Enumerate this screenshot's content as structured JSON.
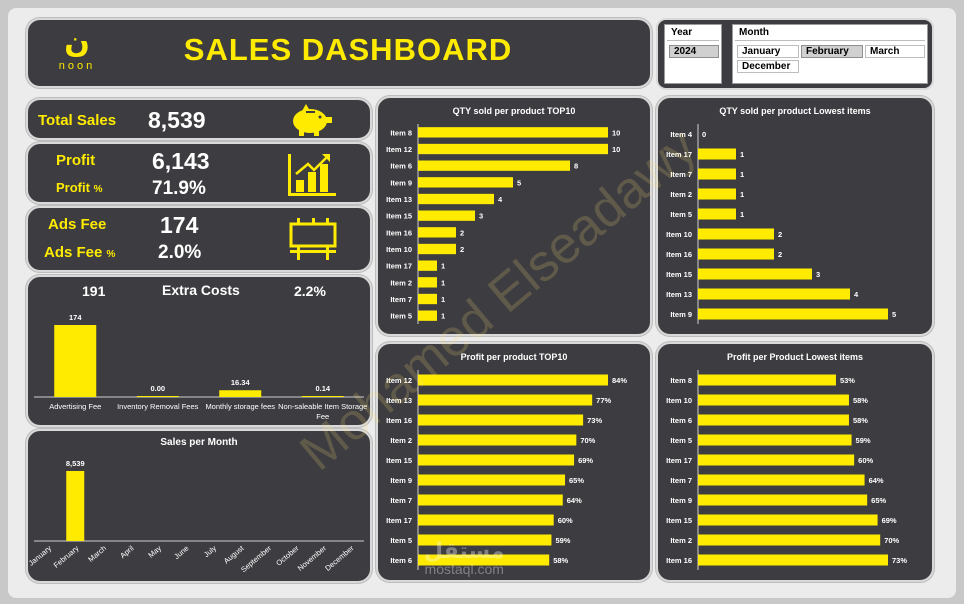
{
  "header": {
    "logo_glyph": "ن",
    "logo_text": "noon",
    "title": "SALES DASHBOARD"
  },
  "slicers": {
    "year": {
      "title": "Year",
      "options": [
        "2024"
      ],
      "selected": "2024"
    },
    "month": {
      "title": "Month",
      "options": [
        "January",
        "February",
        "March",
        "December"
      ],
      "selected": "February"
    }
  },
  "kpis": {
    "total_sales": {
      "label": "Total Sales",
      "value": "8,539"
    },
    "profit": {
      "label": "Profit",
      "value": "6,143",
      "pct_label": "Profit",
      "pct_symbol": "%",
      "pct_value": "71.9%"
    },
    "ads_fee": {
      "label": "Ads Fee",
      "value": "174",
      "pct_label": "Ads Fee",
      "pct_symbol": "%",
      "pct_value": "2.0%"
    }
  },
  "extra_costs": {
    "title": "Extra Costs",
    "total": "191",
    "percent": "2.2%"
  },
  "watermark": "Mohamed Elseadawy",
  "credit": {
    "arabic": "مستقل",
    "latin": "mostaql.com"
  },
  "colors": {
    "bar": "#ffeb00",
    "card": "#3d3c40",
    "accent": "#ffeb00"
  },
  "chart_data": [
    {
      "id": "extra_costs",
      "type": "bar",
      "title": "Extra Costs",
      "categories": [
        "Advertising Fee",
        "Inventory Removal Fees",
        "Monthly storage fees",
        "Non-saleable Item Storage Fee"
      ],
      "values": [
        174,
        0.0,
        16.34,
        0.14
      ],
      "labels": [
        "174",
        "0.00",
        "16.34",
        "0.14"
      ],
      "ylim": [
        0,
        200
      ]
    },
    {
      "id": "sales_per_month",
      "type": "bar",
      "title": "Sales per Month",
      "categories": [
        "January",
        "February",
        "March",
        "April",
        "May",
        "June",
        "July",
        "August",
        "September",
        "October",
        "November",
        "December"
      ],
      "values": [
        0,
        8539,
        0,
        0,
        0,
        0,
        0,
        0,
        0,
        0,
        0,
        0
      ],
      "labels": [
        "",
        "8,539",
        "",
        "",
        "",
        "",
        "",
        "",
        "",
        "",
        "",
        ""
      ],
      "ylim": [
        0,
        10000
      ]
    },
    {
      "id": "qty_top10",
      "type": "bar",
      "orientation": "horizontal",
      "title": "QTY sold per product TOP10",
      "categories": [
        "Item 8",
        "Item 12",
        "Item 6",
        "Item 9",
        "Item 13",
        "Item 15",
        "Item 16",
        "Item 10",
        "Item 17",
        "Item 2",
        "Item 7",
        "Item 5"
      ],
      "values": [
        10,
        10,
        8,
        5,
        4,
        3,
        2,
        2,
        1,
        1,
        1,
        1
      ],
      "labels": [
        "10",
        "10",
        "8",
        "5",
        "4",
        "3",
        "2",
        "2",
        "1",
        "1",
        "1",
        "1"
      ],
      "xlim": [
        0,
        10
      ]
    },
    {
      "id": "qty_lowest",
      "type": "bar",
      "orientation": "horizontal",
      "title": "QTY sold per product Lowest items",
      "categories": [
        "Item 4",
        "Item 17",
        "Item 7",
        "Item 2",
        "Item 5",
        "Item 10",
        "Item 16",
        "Item 15",
        "Item 13",
        "Item 9"
      ],
      "values": [
        0,
        1,
        1,
        1,
        1,
        2,
        2,
        3,
        4,
        5
      ],
      "labels": [
        "0",
        "1",
        "1",
        "1",
        "1",
        "2",
        "2",
        "3",
        "4",
        "5"
      ],
      "xlim": [
        0,
        5
      ]
    },
    {
      "id": "profit_top10",
      "type": "bar",
      "orientation": "horizontal",
      "title": "Profit per product TOP10",
      "categories": [
        "Item 12",
        "Item 13",
        "Item 16",
        "Item 2",
        "Item 15",
        "Item 9",
        "Item 7",
        "Item 17",
        "Item 5",
        "Item 6"
      ],
      "values": [
        84,
        77,
        73,
        70,
        69,
        65,
        64,
        60,
        59,
        58
      ],
      "labels": [
        "84%",
        "77%",
        "73%",
        "70%",
        "69%",
        "65%",
        "64%",
        "60%",
        "59%",
        "58%"
      ],
      "xlim": [
        0,
        84
      ]
    },
    {
      "id": "profit_lowest",
      "type": "bar",
      "orientation": "horizontal",
      "title": "Profit per Product Lowest items",
      "categories": [
        "Item 8",
        "Item 10",
        "Item 6",
        "Item 5",
        "Item 17",
        "Item 7",
        "Item 9",
        "Item 15",
        "Item 2",
        "Item 16"
      ],
      "values": [
        53,
        58,
        58,
        59,
        60,
        64,
        65,
        69,
        70,
        73
      ],
      "labels": [
        "53%",
        "58%",
        "58%",
        "59%",
        "60%",
        "64%",
        "65%",
        "69%",
        "70%",
        "73%"
      ],
      "xlim": [
        0,
        73
      ]
    }
  ]
}
